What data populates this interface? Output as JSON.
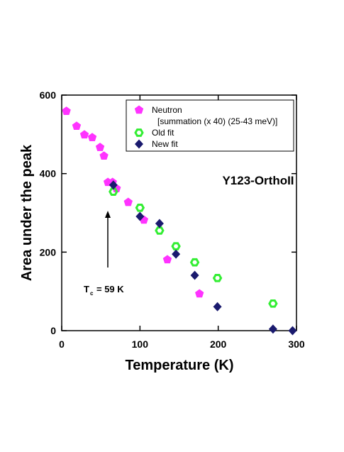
{
  "chart_data": {
    "type": "scatter",
    "x_label": "Temperature (K)",
    "y_label": "Area under the peak",
    "xlim": [
      0,
      300
    ],
    "xticks": [
      0,
      100,
      200,
      300
    ],
    "ylim": [
      0,
      600
    ],
    "yticks": [
      0,
      200,
      400,
      600
    ],
    "legend": "upper right",
    "series": [
      {
        "name": "Neutron",
        "description": "[summation (x 40) (25-43 meV)]",
        "color": "#ff33ff",
        "marker": "pentagon",
        "x": [
          6,
          19,
          29,
          39,
          49,
          54,
          59,
          65,
          70,
          85,
          105,
          135,
          176
        ],
        "values": [
          559,
          521,
          499,
          492,
          467,
          445,
          378,
          378,
          362,
          327,
          282,
          181,
          94
        ]
      },
      {
        "name": "Old fit",
        "color": "#33ee33",
        "marker": "hexagon-open",
        "x": [
          66,
          100,
          125,
          146,
          170,
          199,
          270
        ],
        "values": [
          354,
          313,
          255,
          215,
          174,
          134,
          69
        ]
      },
      {
        "name": "New fit",
        "color": "#1a1a6e",
        "marker": "diamond",
        "x": [
          66,
          100,
          125,
          146,
          170,
          199,
          270,
          295
        ],
        "values": [
          371,
          291,
          273,
          195,
          141,
          61,
          4,
          0
        ]
      }
    ],
    "annotations": {
      "label": "Y123-OrthoII",
      "tc_symbol": "T",
      "tc_subscript": "c",
      "tc_rest": "= 59 K"
    }
  }
}
